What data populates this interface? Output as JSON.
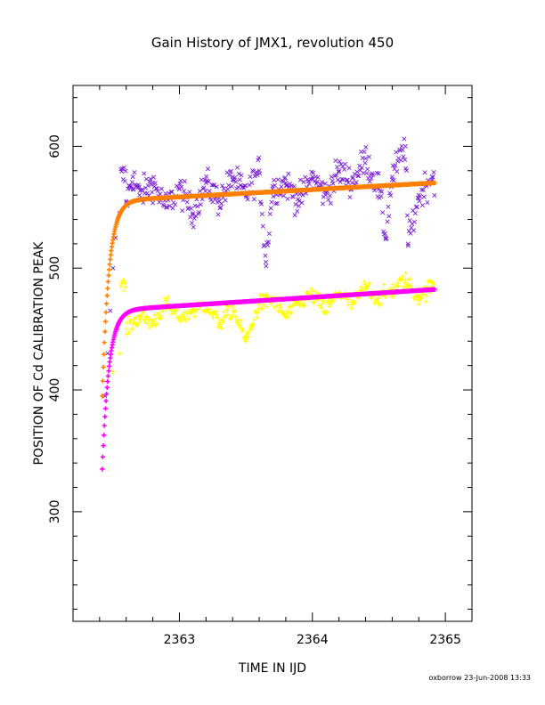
{
  "chart_data": {
    "type": "scatter",
    "title": "Gain History of JMX1, revolution 450",
    "xlabel": "TIME IN IJD",
    "ylabel": "POSITION OF Cd CALIBRATION PEAK",
    "xlim": [
      2362.2,
      2365.2
    ],
    "ylim": [
      210,
      650
    ],
    "x_ticks": [
      2363,
      2364,
      2365
    ],
    "y_ticks": [
      300,
      400,
      500,
      600
    ],
    "grid": false,
    "legend": "none",
    "series": [
      {
        "marker": "x",
        "color": "#7b1fd6",
        "x_range": [
          2362.42,
          2364.92
        ],
        "points": [
          [
            2362.44,
            395
          ],
          [
            2362.46,
            430
          ],
          [
            2362.48,
            465
          ],
          [
            2362.5,
            500
          ],
          [
            2362.52,
            525
          ],
          [
            2362.55,
            545
          ],
          [
            2362.6,
            555
          ],
          [
            2362.65,
            575
          ],
          [
            2362.7,
            560
          ],
          [
            2362.8,
            570
          ],
          [
            2362.9,
            550
          ],
          [
            2363.0,
            565
          ],
          [
            2363.1,
            545
          ],
          [
            2363.2,
            570
          ],
          [
            2363.3,
            555
          ],
          [
            2363.4,
            575
          ],
          [
            2363.5,
            560
          ],
          [
            2363.6,
            580
          ],
          [
            2363.7,
            565
          ],
          [
            2363.8,
            570
          ],
          [
            2363.9,
            555
          ],
          [
            2364.0,
            575
          ],
          [
            2364.1,
            560
          ],
          [
            2364.2,
            580
          ],
          [
            2364.3,
            570
          ],
          [
            2364.4,
            590
          ],
          [
            2364.5,
            565
          ],
          [
            2364.6,
            575
          ],
          [
            2364.7,
            600
          ],
          [
            2364.8,
            560
          ],
          [
            2364.9,
            575
          ],
          [
            2363.65,
            505
          ],
          [
            2364.55,
            525
          ],
          [
            2364.72,
            520
          ]
        ]
      },
      {
        "marker": "+",
        "color": "#ffff00",
        "x_range": [
          2362.42,
          2364.92
        ],
        "points": [
          [
            2362.5,
            415
          ],
          [
            2362.55,
            430
          ],
          [
            2362.6,
            450
          ],
          [
            2362.7,
            460
          ],
          [
            2362.8,
            455
          ],
          [
            2362.9,
            470
          ],
          [
            2363.0,
            460
          ],
          [
            2363.1,
            465
          ],
          [
            2363.2,
            470
          ],
          [
            2363.3,
            455
          ],
          [
            2363.4,
            468
          ],
          [
            2363.5,
            440
          ],
          [
            2363.6,
            470
          ],
          [
            2363.7,
            475
          ],
          [
            2363.8,
            460
          ],
          [
            2363.9,
            472
          ],
          [
            2364.0,
            478
          ],
          [
            2364.1,
            465
          ],
          [
            2364.2,
            480
          ],
          [
            2364.3,
            470
          ],
          [
            2364.4,
            485
          ],
          [
            2364.5,
            475
          ],
          [
            2364.6,
            482
          ],
          [
            2364.7,
            490
          ],
          [
            2364.8,
            476
          ],
          [
            2364.9,
            485
          ]
        ]
      },
      {
        "marker": "+",
        "color": "#ff8000",
        "fit": {
          "x0": 2362.42,
          "base": 555,
          "start": 395,
          "tau": 0.05,
          "slope": 6
        }
      },
      {
        "marker": "+",
        "color": "#ff00ff",
        "fit": {
          "x0": 2362.42,
          "base": 465,
          "start": 335,
          "tau": 0.05,
          "slope": 7
        }
      }
    ]
  },
  "footer": {
    "credit": "oxborrow 23-Jun-2008 13:33"
  }
}
